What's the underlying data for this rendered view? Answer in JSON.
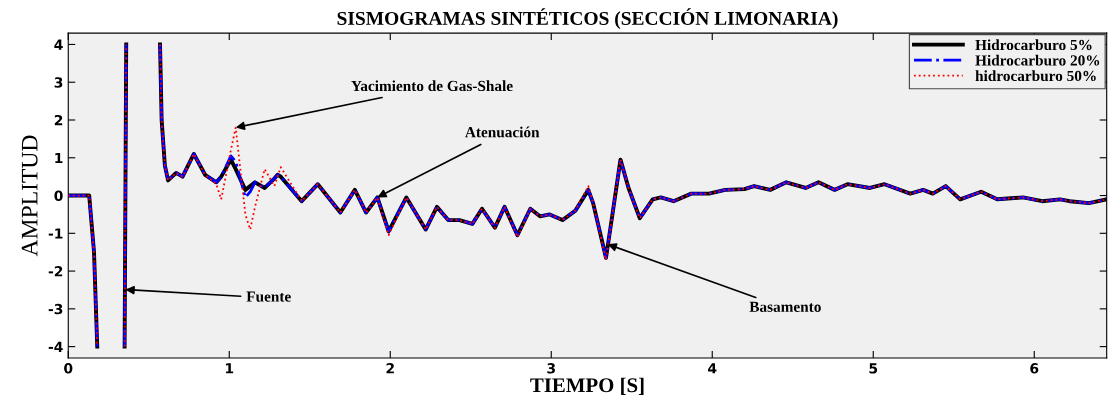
{
  "chart_data": {
    "type": "line",
    "title": "SISMOGRAMAS SINTÉTICOS (SECCIÓN LIMONARIA)",
    "xlabel": "TIEMPO [S]",
    "ylabel": "AMPLITUD",
    "x": [
      0,
      0.1,
      0.13,
      0.16,
      0.18,
      0.26,
      0.35,
      0.36,
      0.46,
      0.57,
      0.58,
      0.6,
      0.62,
      0.67,
      0.71,
      0.78,
      0.85,
      0.92,
      0.95,
      1.01,
      1.04,
      1.1,
      1.13,
      1.16,
      1.22,
      1.28,
      1.3,
      1.32,
      1.45,
      1.55,
      1.69,
      1.78,
      1.85,
      1.92,
      1.99,
      2.1,
      2.22,
      2.29,
      2.36,
      2.43,
      2.51,
      2.57,
      2.65,
      2.71,
      2.79,
      2.87,
      2.93,
      2.99,
      3.07,
      3.15,
      3.23,
      3.26,
      3.34,
      3.38,
      3.43,
      3.48,
      3.55,
      3.63,
      3.68,
      3.76,
      3.87,
      3.98,
      4.08,
      4.2,
      4.26,
      4.36,
      4.46,
      4.58,
      4.66,
      4.76,
      4.84,
      4.98,
      5.07,
      5.23,
      5.31,
      5.37,
      5.45,
      5.54,
      5.67,
      5.77,
      5.93,
      6.05,
      6.16,
      6.22,
      6.34,
      6.45
    ],
    "series": [
      {
        "name": "Hidrocarburo 5%",
        "color": "#000000",
        "line_style": "solid",
        "values": [
          0,
          0,
          0,
          -1.5,
          -4,
          null,
          -4,
          4,
          null,
          4,
          2,
          0.8,
          0.4,
          0.6,
          0.5,
          1.1,
          0.55,
          0.35,
          0.5,
          0.95,
          0.7,
          0.15,
          0.25,
          0.35,
          0.2,
          0.45,
          0.55,
          0.5,
          -0.15,
          0.3,
          -0.45,
          0.15,
          -0.45,
          -0.05,
          -0.95,
          -0.05,
          -0.9,
          -0.3,
          -0.65,
          -0.65,
          -0.75,
          -0.35,
          -0.85,
          -0.3,
          -1.05,
          -0.35,
          -0.55,
          -0.5,
          -0.65,
          -0.4,
          0.15,
          -0.2,
          -1.65,
          -0.5,
          0.95,
          0.2,
          -0.6,
          -0.1,
          -0.05,
          -0.15,
          0.05,
          0.05,
          0.15,
          0.17,
          0.25,
          0.15,
          0.35,
          0.2,
          0.35,
          0.15,
          0.3,
          0.2,
          0.3,
          0.05,
          0.15,
          0.05,
          0.25,
          -0.1,
          0.1,
          -0.1,
          -0.05,
          -0.15,
          -0.1,
          -0.15,
          -0.2,
          -0.1
        ]
      },
      {
        "name": "Hidrocarburo 20%",
        "color": "#0000ff",
        "line_style": "dashdot",
        "values": [
          0,
          0,
          0,
          -1.5,
          -4,
          null,
          -4,
          4,
          null,
          4,
          2,
          0.8,
          0.4,
          0.6,
          0.5,
          1.1,
          0.55,
          0.35,
          0.5,
          1.05,
          0.9,
          -0.05,
          0.1,
          0.35,
          0.2,
          0.45,
          0.55,
          0.5,
          -0.15,
          0.3,
          -0.45,
          0.15,
          -0.45,
          -0.05,
          -0.95,
          -0.05,
          -0.9,
          -0.3,
          -0.65,
          -0.65,
          -0.75,
          -0.35,
          -0.85,
          -0.3,
          -1.05,
          -0.35,
          -0.55,
          -0.5,
          -0.65,
          -0.4,
          0.15,
          -0.2,
          -1.65,
          -0.5,
          0.95,
          0.2,
          -0.6,
          -0.1,
          -0.05,
          -0.15,
          0.05,
          0.05,
          0.15,
          0.17,
          0.25,
          0.15,
          0.35,
          0.2,
          0.35,
          0.15,
          0.3,
          0.2,
          0.3,
          0.05,
          0.15,
          0.05,
          0.25,
          -0.1,
          0.1,
          -0.1,
          -0.05,
          -0.15,
          -0.1,
          -0.15,
          -0.2,
          -0.1
        ]
      },
      {
        "name": "hidrocarburo 50%",
        "color": "#ff0000",
        "line_style": "dotted",
        "values": [
          0,
          0,
          0,
          -1.5,
          -4,
          null,
          -4,
          4,
          null,
          4,
          2,
          0.8,
          0.4,
          0.6,
          0.5,
          1.1,
          0.55,
          0.3,
          -0.1,
          1.2,
          1.8,
          -0.5,
          -0.9,
          -0.3,
          0.7,
          0.25,
          0.5,
          0.75,
          -0.15,
          0.3,
          -0.45,
          0.15,
          -0.45,
          -0.05,
          -1.05,
          -0.05,
          -0.9,
          -0.3,
          -0.65,
          -0.65,
          -0.75,
          -0.35,
          -0.85,
          -0.3,
          -1.1,
          -0.35,
          -0.55,
          -0.5,
          -0.65,
          -0.4,
          0.25,
          -0.2,
          -1.7,
          -0.5,
          0.95,
          0.2,
          -0.6,
          -0.1,
          -0.05,
          -0.15,
          0.05,
          0.05,
          0.15,
          0.17,
          0.25,
          0.15,
          0.35,
          0.2,
          0.35,
          0.15,
          0.3,
          0.2,
          0.3,
          0.05,
          0.15,
          0.05,
          0.25,
          -0.1,
          0.1,
          -0.1,
          -0.05,
          -0.15,
          -0.1,
          -0.15,
          -0.2,
          -0.1
        ]
      }
    ],
    "xlim": [
      0,
      6.45
    ],
    "xticks": [
      0,
      1,
      2,
      3,
      4,
      5,
      6
    ],
    "ylim": [
      -4.3,
      4.3
    ],
    "yticks": [
      -4,
      -3,
      -2,
      -1,
      0,
      1,
      2,
      3,
      4
    ],
    "legend": "top right",
    "grid": false,
    "annotations": [
      {
        "text": "Yacimiento de Gas-Shale",
        "x": 1.04,
        "y": 1.8
      },
      {
        "text": "Atenuación",
        "x": 1.92,
        "y": -0.05
      },
      {
        "text": "Fuente",
        "x": 0.355,
        "y": -2.49
      },
      {
        "text": "Basamento",
        "x": 3.35,
        "y": -1.29
      }
    ]
  }
}
